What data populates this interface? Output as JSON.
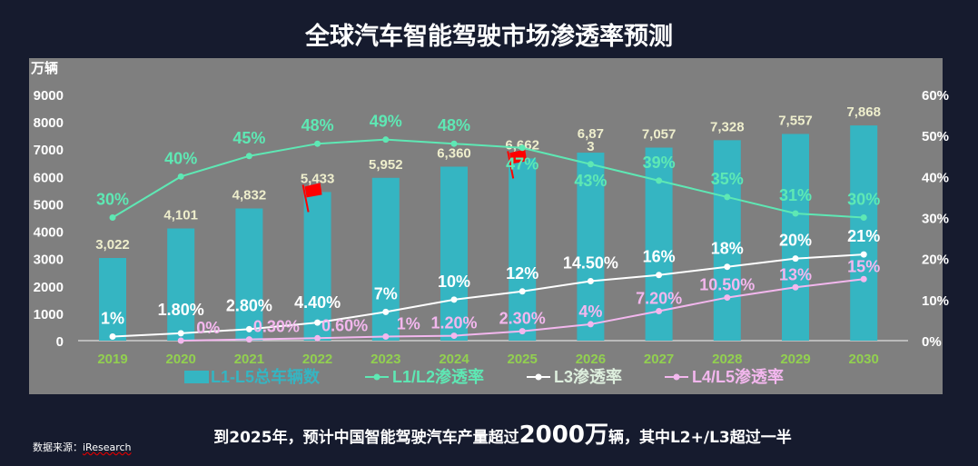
{
  "title": "全球汽车智能驾驶市场渗透率预测",
  "footer": {
    "note_prefix": "到2025年，预计中国智能驾驶汽车产量超过",
    "note_big": "2000万",
    "note_suffix": "辆，其中L2+/L3超过一半",
    "source_label": "数据来源：",
    "source_value": "iResearch"
  },
  "colors": {
    "background": "#161b2e",
    "plot_bg": "#7f7f7f",
    "bar": "#35b5c2",
    "l1l2": "#5ee8b4",
    "l3": "#ffffff",
    "l4l5": "#f3b7ee",
    "year_label": "#92d050",
    "bar_label": "#eeeecc",
    "flag": "#ff0000"
  },
  "chart_data": {
    "type": "bar+line",
    "categories": [
      "2019",
      "2020",
      "2021",
      "2022",
      "2023",
      "2024",
      "2025",
      "2026",
      "2027",
      "2028",
      "2029",
      "2030"
    ],
    "y_left": {
      "label": "万辆",
      "range": [
        0,
        9000
      ],
      "ticks": [
        "0",
        "1000",
        "2000",
        "3000",
        "4000",
        "5000",
        "6000",
        "7000",
        "8000",
        "9000"
      ]
    },
    "y_right": {
      "range": [
        0,
        60
      ],
      "ticks": [
        "0%",
        "10%",
        "20%",
        "30%",
        "40%",
        "50%",
        "60%"
      ]
    },
    "grid": false,
    "legend_position": "bottom",
    "series": [
      {
        "name": "L1-L5总车辆数",
        "kind": "bar",
        "axis": "left",
        "values": [
          3022,
          4101,
          4832,
          5433,
          5952,
          6360,
          6662,
          6873,
          7057,
          7328,
          7557,
          7868
        ],
        "labels": [
          "3,022",
          "4,101",
          "4,832",
          "5,433",
          "5,952",
          "6,360",
          "6,662",
          "6,87\n3",
          "7,057",
          "7,328",
          "7,557",
          "7,868"
        ]
      },
      {
        "name": "L1/L2渗透率",
        "kind": "line",
        "axis": "right",
        "values": [
          30,
          40,
          45,
          48,
          49,
          48,
          47,
          43,
          39,
          35,
          31,
          30
        ],
        "labels": [
          "30%",
          "40%",
          "45%",
          "48%",
          "49%",
          "48%",
          "47%",
          "43%",
          "39%",
          "35%",
          "31%",
          "30%"
        ]
      },
      {
        "name": "L3渗透率",
        "kind": "line",
        "axis": "right",
        "values": [
          1,
          1.8,
          2.8,
          4.4,
          7,
          10,
          12,
          14.5,
          16,
          18,
          20,
          21
        ],
        "labels": [
          "1%",
          "1.80%",
          "2.80%",
          "4.40%",
          "7%",
          "10%",
          "12%",
          "14.50%",
          "16%",
          "18%",
          "20%",
          "21%"
        ]
      },
      {
        "name": "L4/L5渗透率",
        "kind": "line",
        "axis": "right",
        "values": [
          null,
          0,
          0.3,
          0.6,
          1,
          1.2,
          2.3,
          4,
          7.2,
          10.5,
          13,
          15
        ],
        "labels": [
          null,
          "0%",
          "0.30%",
          "0.60%",
          "1%",
          "1.20%",
          "2.30%",
          "4%",
          "7.20%",
          "10.50%",
          "13%",
          "15%"
        ]
      }
    ],
    "annotations": [
      {
        "type": "flag-icon",
        "category": "2022"
      },
      {
        "type": "flag-icon",
        "category": "2025"
      }
    ]
  }
}
